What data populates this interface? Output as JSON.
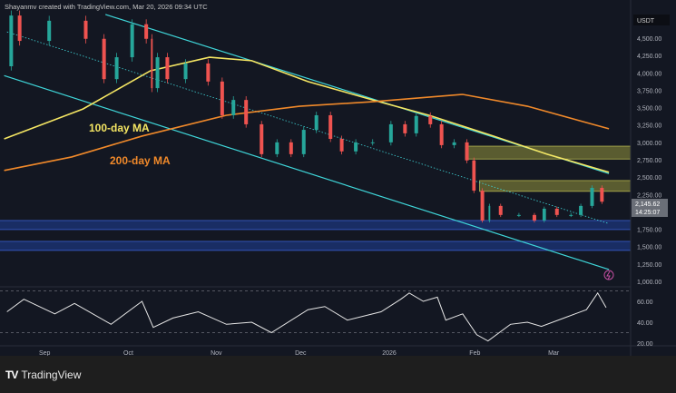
{
  "attribution": "Shayanmv created with TradingView.com, Mar 20, 2026 09:34 UTC",
  "brand": "TradingView",
  "colors": {
    "background": "#131722",
    "up": "#26a69a",
    "down": "#ef5350",
    "ma100": "#f5e663",
    "ma200": "#f0892a",
    "channel": "#3fd6d9",
    "zone_yellow": "#8a8a3a",
    "zone_blue": "#1f3f9a",
    "rsi": "#e6e6e6"
  },
  "chart_data": {
    "type": "line",
    "price_axis": {
      "unit_label": "USDT",
      "ticks": [
        4500,
        4250,
        4000,
        3750,
        3500,
        3250,
        3000,
        2750,
        2500,
        2250,
        1750,
        1500,
        1250,
        1000
      ],
      "tick_labels": [
        "4,500.00",
        "4,250.00",
        "4,000.00",
        "3,750.00",
        "3,500.00",
        "3,250.00",
        "3,000.00",
        "2,750.00",
        "2,500.00",
        "2,250.00",
        "1,750.00",
        "1,500.00",
        "1,250.00",
        "1,000.00"
      ]
    },
    "rsi_axis": {
      "ticks": [
        60,
        40,
        20
      ],
      "tick_labels": [
        "60.00",
        "40.00",
        "20.00"
      ],
      "bands": [
        70,
        30
      ]
    },
    "x_axis": {
      "ticks": [
        "2025-09-01",
        "2025-10-01",
        "2025-11-01",
        "2025-12-01",
        "2026-01-01",
        "2026-02-01",
        "2026-03-01"
      ],
      "tick_labels": [
        "Sep",
        "Oct",
        "Nov",
        "Dec",
        "2026",
        "Feb",
        "Mar"
      ]
    },
    "current_price": {
      "value": 2145.62,
      "label": "2,145.62",
      "countdown": "14:25:07"
    },
    "price": [
      [
        "2025-08-19",
        4095
      ],
      [
        "2025-08-22",
        4825
      ],
      [
        "2025-08-25",
        4460
      ],
      [
        "2025-09-12",
        4750
      ],
      [
        "2025-09-20",
        4490
      ],
      [
        "2025-09-25",
        3910
      ],
      [
        "2025-09-29",
        4225
      ],
      [
        "2025-10-06",
        4700
      ],
      [
        "2025-10-09",
        4490
      ],
      [
        "2025-10-10",
        3780
      ],
      [
        "2025-10-13",
        4225
      ],
      [
        "2025-10-17",
        3910
      ],
      [
        "2025-10-26",
        4135
      ],
      [
        "2025-11-02",
        3875
      ],
      [
        "2025-11-05",
        3390
      ],
      [
        "2025-11-10",
        3610
      ],
      [
        "2025-11-14",
        3260
      ],
      [
        "2025-11-21",
        2830
      ],
      [
        "2025-11-25",
        3000
      ],
      [
        "2025-12-01",
        2830
      ],
      [
        "2025-12-04",
        3180
      ],
      [
        "2025-12-10",
        3390
      ],
      [
        "2025-12-14",
        3050
      ],
      [
        "2025-12-18",
        2870
      ],
      [
        "2025-12-24",
        3000
      ],
      [
        "2025-12-30",
        3000
      ],
      [
        "2026-01-06",
        3260
      ],
      [
        "2026-01-09",
        3130
      ],
      [
        "2026-01-14",
        3380
      ],
      [
        "2026-01-19",
        3260
      ],
      [
        "2026-01-22",
        2960
      ],
      [
        "2026-01-28",
        3000
      ],
      [
        "2026-01-31",
        2740
      ],
      [
        "2026-02-02",
        2305
      ],
      [
        "2026-02-06",
        1875
      ],
      [
        "2026-02-07",
        2085
      ],
      [
        "2026-02-14",
        1955
      ],
      [
        "2026-02-20",
        1955
      ],
      [
        "2026-02-25",
        1875
      ],
      [
        "2026-02-27",
        2045
      ],
      [
        "2026-03-06",
        1955
      ],
      [
        "2026-03-09",
        1955
      ],
      [
        "2026-03-13",
        2085
      ],
      [
        "2026-03-17",
        2345
      ],
      [
        "2026-03-20",
        2146
      ]
    ],
    "series": [
      {
        "name": "100-day MA",
        "color": "#f5e663",
        "points": [
          [
            "2025-08-18",
            3050
          ],
          [
            "2025-09-15",
            3480
          ],
          [
            "2025-10-09",
            4030
          ],
          [
            "2025-10-30",
            4225
          ],
          [
            "2025-11-14",
            4175
          ],
          [
            "2025-12-04",
            3875
          ],
          [
            "2025-12-27",
            3610
          ],
          [
            "2026-01-16",
            3390
          ],
          [
            "2026-02-08",
            3090
          ],
          [
            "2026-02-27",
            2830
          ],
          [
            "2026-03-21",
            2570
          ]
        ]
      },
      {
        "name": "200-day MA",
        "color": "#f0892a",
        "points": [
          [
            "2025-08-18",
            2595
          ],
          [
            "2025-09-11",
            2790
          ],
          [
            "2025-10-06",
            3090
          ],
          [
            "2025-11-05",
            3390
          ],
          [
            "2025-12-01",
            3520
          ],
          [
            "2025-12-27",
            3585
          ],
          [
            "2026-01-28",
            3690
          ],
          [
            "2026-02-20",
            3520
          ],
          [
            "2026-03-21",
            3195
          ]
        ]
      }
    ],
    "channel": {
      "upper": [
        [
          "2025-09-23",
          4840
        ],
        [
          "2026-03-21",
          2550
        ]
      ],
      "middle": [
        [
          "2025-08-19",
          4590
        ],
        [
          "2026-03-21",
          1830
        ]
      ],
      "lower": [
        [
          "2025-08-18",
          3960
        ],
        [
          "2026-03-21",
          1170
        ]
      ]
    },
    "zones": [
      {
        "kind": "resistance",
        "color": "#8a8a3a",
        "from": 2760,
        "to": 2945,
        "start": "2026-01-29"
      },
      {
        "kind": "resistance",
        "color": "#8a8a3a",
        "from": 2295,
        "to": 2450,
        "start": "2026-02-03"
      },
      {
        "kind": "support",
        "color": "#1f3f9a",
        "from": 1745,
        "to": 1875,
        "start": "2025-08-15"
      },
      {
        "kind": "support",
        "color": "#1f3f9a",
        "from": 1445,
        "to": 1575,
        "start": "2025-08-15"
      }
    ],
    "rsi": [
      [
        "2025-08-19",
        50
      ],
      [
        "2025-08-25",
        62
      ],
      [
        "2025-09-05",
        48
      ],
      [
        "2025-09-12",
        58
      ],
      [
        "2025-09-25",
        38
      ],
      [
        "2025-10-06",
        60
      ],
      [
        "2025-10-10",
        35
      ],
      [
        "2025-10-17",
        44
      ],
      [
        "2025-10-26",
        50
      ],
      [
        "2025-11-05",
        38
      ],
      [
        "2025-11-14",
        40
      ],
      [
        "2025-11-21",
        30
      ],
      [
        "2025-12-04",
        52
      ],
      [
        "2025-12-10",
        55
      ],
      [
        "2025-12-18",
        42
      ],
      [
        "2025-12-30",
        50
      ],
      [
        "2026-01-06",
        62
      ],
      [
        "2026-01-09",
        68
      ],
      [
        "2026-01-14",
        60
      ],
      [
        "2026-01-19",
        64
      ],
      [
        "2026-01-22",
        42
      ],
      [
        "2026-01-28",
        48
      ],
      [
        "2026-02-02",
        28
      ],
      [
        "2026-02-06",
        22
      ],
      [
        "2026-02-14",
        38
      ],
      [
        "2026-02-20",
        40
      ],
      [
        "2026-02-25",
        36
      ],
      [
        "2026-03-06",
        45
      ],
      [
        "2026-03-13",
        52
      ],
      [
        "2026-03-17",
        68
      ],
      [
        "2026-03-20",
        54
      ]
    ],
    "annotations": [
      "100-day MA",
      "200-day MA"
    ]
  }
}
